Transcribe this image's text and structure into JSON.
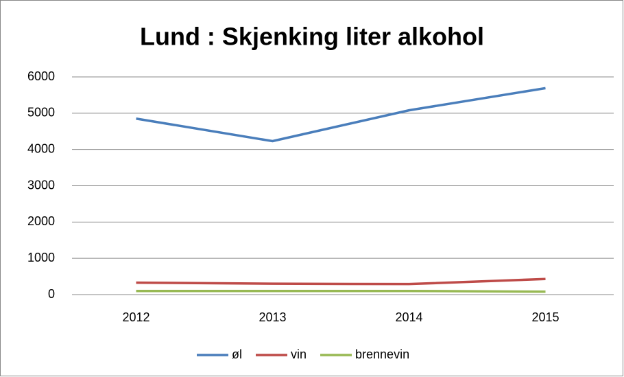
{
  "chart_data": {
    "type": "line",
    "title": "Lund : Skjenking liter alkohol",
    "categories": [
      "2012",
      "2013",
      "2014",
      "2015"
    ],
    "series": [
      {
        "name": "øl",
        "color": "#4a7ebb",
        "values": [
          4850,
          4230,
          5080,
          5690
        ]
      },
      {
        "name": "vin",
        "color": "#be4b48",
        "values": [
          330,
          300,
          290,
          430
        ]
      },
      {
        "name": "brennevin",
        "color": "#98b954",
        "values": [
          100,
          100,
          100,
          80
        ]
      }
    ],
    "ylim": [
      0,
      6000
    ],
    "yticks": [
      0,
      1000,
      2000,
      3000,
      4000,
      5000,
      6000
    ],
    "grid": true,
    "legend": "bottom"
  }
}
